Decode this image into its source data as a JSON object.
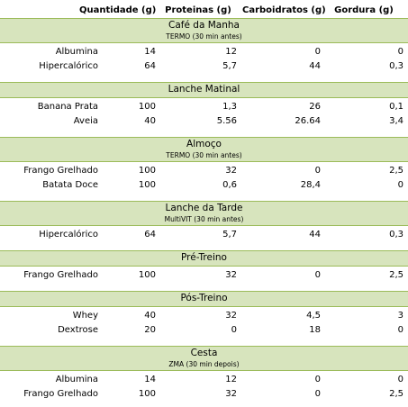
{
  "header": {
    "quantity": "Quantidade (g)",
    "protein": "Proteinas (g)",
    "carbs": "Carboidratos (g)",
    "fat": "Gordura (g)"
  },
  "meals": [
    {
      "title": "Café da Manha",
      "note": "TERMO (30 min antes)",
      "items": [
        {
          "name": "Albumina",
          "qty": "14",
          "protein": "12",
          "carbs": "0",
          "fat": "0"
        },
        {
          "name": "Hipercalórico",
          "qty": "64",
          "protein": "5,7",
          "carbs": "44",
          "fat": "0,3"
        }
      ]
    },
    {
      "title": "Lanche Matinal",
      "note": "",
      "items": [
        {
          "name": "Banana Prata",
          "qty": "100",
          "protein": "1,3",
          "carbs": "26",
          "fat": "0,1"
        },
        {
          "name": "Aveia",
          "qty": "40",
          "protein": "5.56",
          "carbs": "26.64",
          "fat": "3,4"
        }
      ]
    },
    {
      "title": "Almoço",
      "note": "TERMO (30 min antes)",
      "items": [
        {
          "name": "Frango Grelhado",
          "qty": "100",
          "protein": "32",
          "carbs": "0",
          "fat": "2,5"
        },
        {
          "name": "Batata Doce",
          "qty": "100",
          "protein": "0,6",
          "carbs": "28,4",
          "fat": "0"
        }
      ]
    },
    {
      "title": "Lanche da Tarde",
      "note": "MultiVIT (30 min antes)",
      "items": [
        {
          "name": "Hipercalórico",
          "qty": "64",
          "protein": "5,7",
          "carbs": "44",
          "fat": "0,3"
        }
      ]
    },
    {
      "title": "Pré-Treino",
      "note": "",
      "items": [
        {
          "name": "Frango Grelhado",
          "qty": "100",
          "protein": "32",
          "carbs": "0",
          "fat": "2,5"
        }
      ]
    },
    {
      "title": "Pós-Treino",
      "note": "",
      "items": [
        {
          "name": "Whey",
          "qty": "40",
          "protein": "32",
          "carbs": "4,5",
          "fat": "3"
        },
        {
          "name": "Dextrose",
          "qty": "20",
          "protein": "0",
          "carbs": "18",
          "fat": "0"
        }
      ]
    },
    {
      "title": "Cesta",
      "note": "ZMA (30 min depois)",
      "items": [
        {
          "name": "Albumina",
          "qty": "14",
          "protein": "12",
          "carbs": "0",
          "fat": "0"
        },
        {
          "name": "Frango Grelhado",
          "qty": "100",
          "protein": "32",
          "carbs": "0",
          "fat": "2,5"
        }
      ]
    }
  ]
}
